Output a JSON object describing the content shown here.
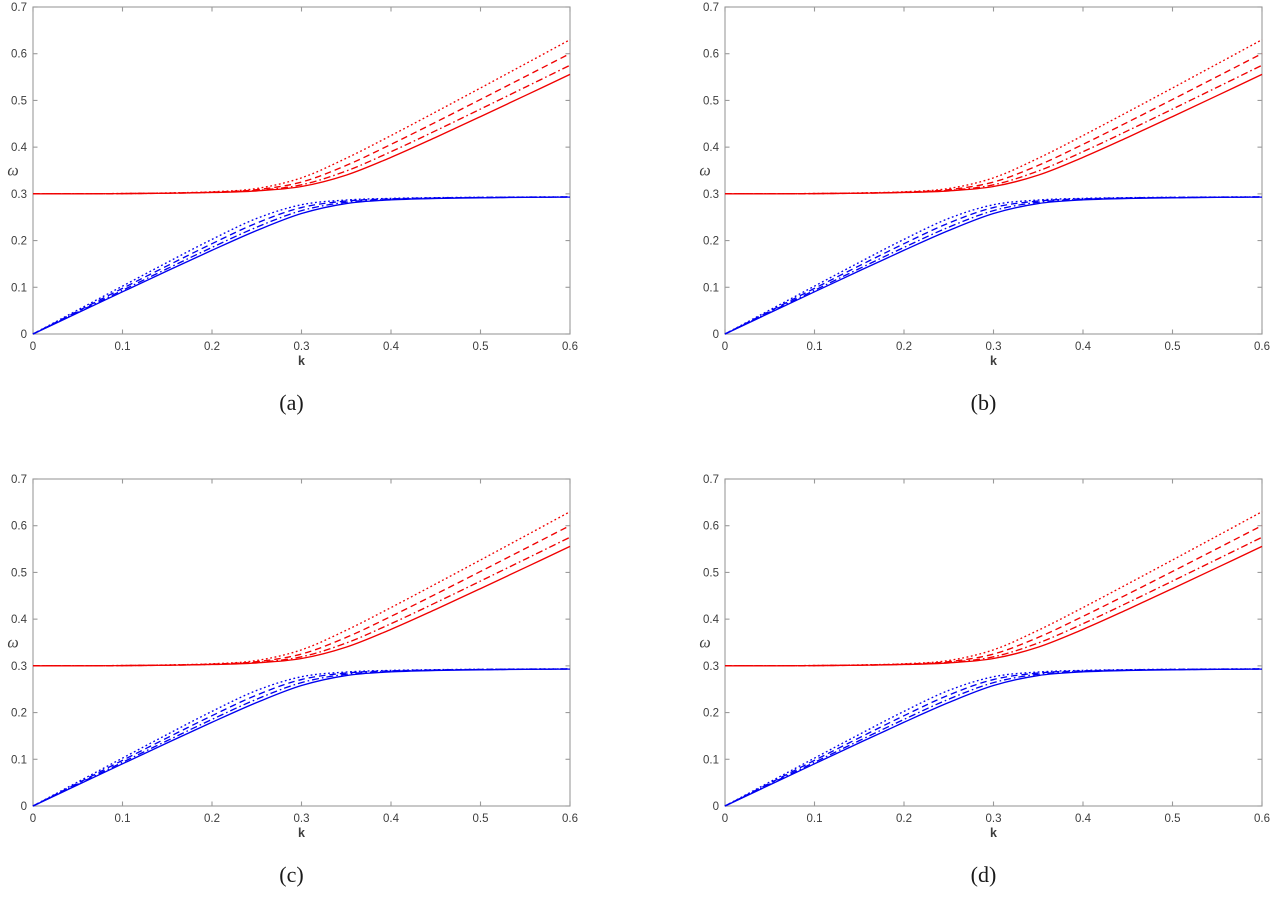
{
  "figure": {
    "background": "#ffffff",
    "panels": [
      {
        "id": "a",
        "label": "(a)"
      },
      {
        "id": "b",
        "label": "(b)"
      },
      {
        "id": "c",
        "label": "(c)"
      },
      {
        "id": "d",
        "label": "(d)"
      }
    ],
    "panels_note": "All four panels display visually identical sets of dispersion curves"
  },
  "chart_data": {
    "type": "line",
    "title": "",
    "xlabel": "k",
    "ylabel": "ω",
    "xlim": [
      0,
      0.6
    ],
    "ylim": [
      0,
      0.7
    ],
    "xticks": [
      0,
      0.1,
      0.2,
      0.3,
      0.4,
      0.5,
      0.6
    ],
    "xtick_labels": [
      "0",
      "0.1",
      "0.2",
      "0.3",
      "0.4",
      "0.5",
      "0.6"
    ],
    "yticks": [
      0,
      0.1,
      0.2,
      0.3,
      0.4,
      0.5,
      0.6,
      0.7
    ],
    "ytick_labels": [
      "0",
      "0.1",
      "0.2",
      "0.3",
      "0.4",
      "0.5",
      "0.6",
      "0.7"
    ],
    "grid": false,
    "legend": "none",
    "box": true,
    "tick_direction": "in",
    "axis_color": "#9a9a9a",
    "tick_label_color": "#3d3d3d",
    "upper_branch_color": "#f00000",
    "lower_branch_color": "#0000f0",
    "k": [
      0,
      0.05,
      0.1,
      0.15,
      0.2,
      0.25,
      0.3,
      0.35,
      0.4,
      0.45,
      0.5,
      0.55,
      0.6
    ],
    "series": [
      {
        "name": "upper-branch-solid",
        "branch": "upper",
        "line_style": "solid",
        "color": "#f00000",
        "values": [
          0.3,
          0.3001,
          0.3005,
          0.3013,
          0.3029,
          0.3063,
          0.3157,
          0.3401,
          0.3782,
          0.421,
          0.4654,
          0.5104,
          0.5557
        ]
      },
      {
        "name": "upper-branch-dashdot",
        "branch": "upper",
        "line_style": "dash-dot",
        "color": "#f00000",
        "values": [
          0.3,
          0.3001,
          0.3006,
          0.3014,
          0.3032,
          0.3074,
          0.3194,
          0.3489,
          0.3902,
          0.4352,
          0.4815,
          0.5283,
          0.5753
        ]
      },
      {
        "name": "upper-branch-dashed",
        "branch": "upper",
        "line_style": "dashed",
        "color": "#f00000",
        "values": [
          0.3,
          0.3001,
          0.3006,
          0.3016,
          0.3037,
          0.309,
          0.3253,
          0.3609,
          0.4059,
          0.4535,
          0.5021,
          0.5511,
          0.6003
        ]
      },
      {
        "name": "upper-branch-dotted",
        "branch": "upper",
        "line_style": "dotted",
        "color": "#f00000",
        "values": [
          0.3,
          0.3002,
          0.3007,
          0.302,
          0.3044,
          0.3115,
          0.3343,
          0.3762,
          0.4248,
          0.4754,
          0.5266,
          0.5782,
          0.63
        ]
      },
      {
        "name": "lower-branch-solid",
        "branch": "lower",
        "line_style": "solid",
        "color": "#0000f0",
        "values": [
          0.0,
          0.0452,
          0.0903,
          0.1351,
          0.1792,
          0.2215,
          0.2579,
          0.2793,
          0.2871,
          0.2901,
          0.2916,
          0.2925,
          0.293
        ]
      },
      {
        "name": "lower-branch-dashdot",
        "branch": "lower",
        "line_style": "dash-dot",
        "color": "#0000f0",
        "values": [
          0.0,
          0.0468,
          0.0935,
          0.1399,
          0.1854,
          0.2287,
          0.2641,
          0.2821,
          0.2882,
          0.2907,
          0.292,
          0.2927,
          0.2932
        ]
      },
      {
        "name": "lower-branch-dashed",
        "branch": "lower",
        "line_style": "dashed",
        "color": "#0000f0",
        "values": [
          0.0,
          0.0489,
          0.0977,
          0.146,
          0.1933,
          0.2375,
          0.2707,
          0.2847,
          0.2893,
          0.2913,
          0.2923,
          0.293,
          0.2934
        ]
      },
      {
        "name": "lower-branch-dotted",
        "branch": "lower",
        "line_style": "dotted",
        "color": "#0000f0",
        "values": [
          0.0,
          0.0514,
          0.1025,
          0.1532,
          0.2026,
          0.2474,
          0.2767,
          0.2868,
          0.2903,
          0.2918,
          0.2927,
          0.2932,
          0.2936
        ]
      }
    ]
  }
}
